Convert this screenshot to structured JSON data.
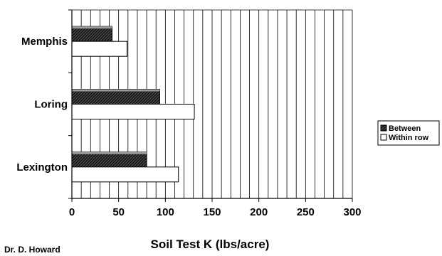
{
  "author": "Dr. D. Howard",
  "chart_data": {
    "type": "bar",
    "orientation": "horizontal",
    "categories": [
      "Memphis",
      "Loring",
      "Lexington"
    ],
    "series": [
      {
        "name": "Between",
        "values": [
          43,
          94,
          80
        ],
        "fill": "dark-crosshatch"
      },
      {
        "name": "Within row",
        "values": [
          59,
          131,
          114
        ],
        "fill": "#ffffff"
      }
    ],
    "xlabel": "Soil Test K (lbs/acre)",
    "ylabel": "",
    "xlim": [
      0,
      300
    ],
    "xticks": [
      0,
      50,
      100,
      150,
      200,
      250,
      300
    ],
    "vertical_grid_step": 10,
    "grid": true,
    "legend_position": "right",
    "colors": {
      "axis": "#000000",
      "grid": "#000000",
      "bar_dark": "#333333",
      "bar_light": "#ffffff"
    }
  }
}
